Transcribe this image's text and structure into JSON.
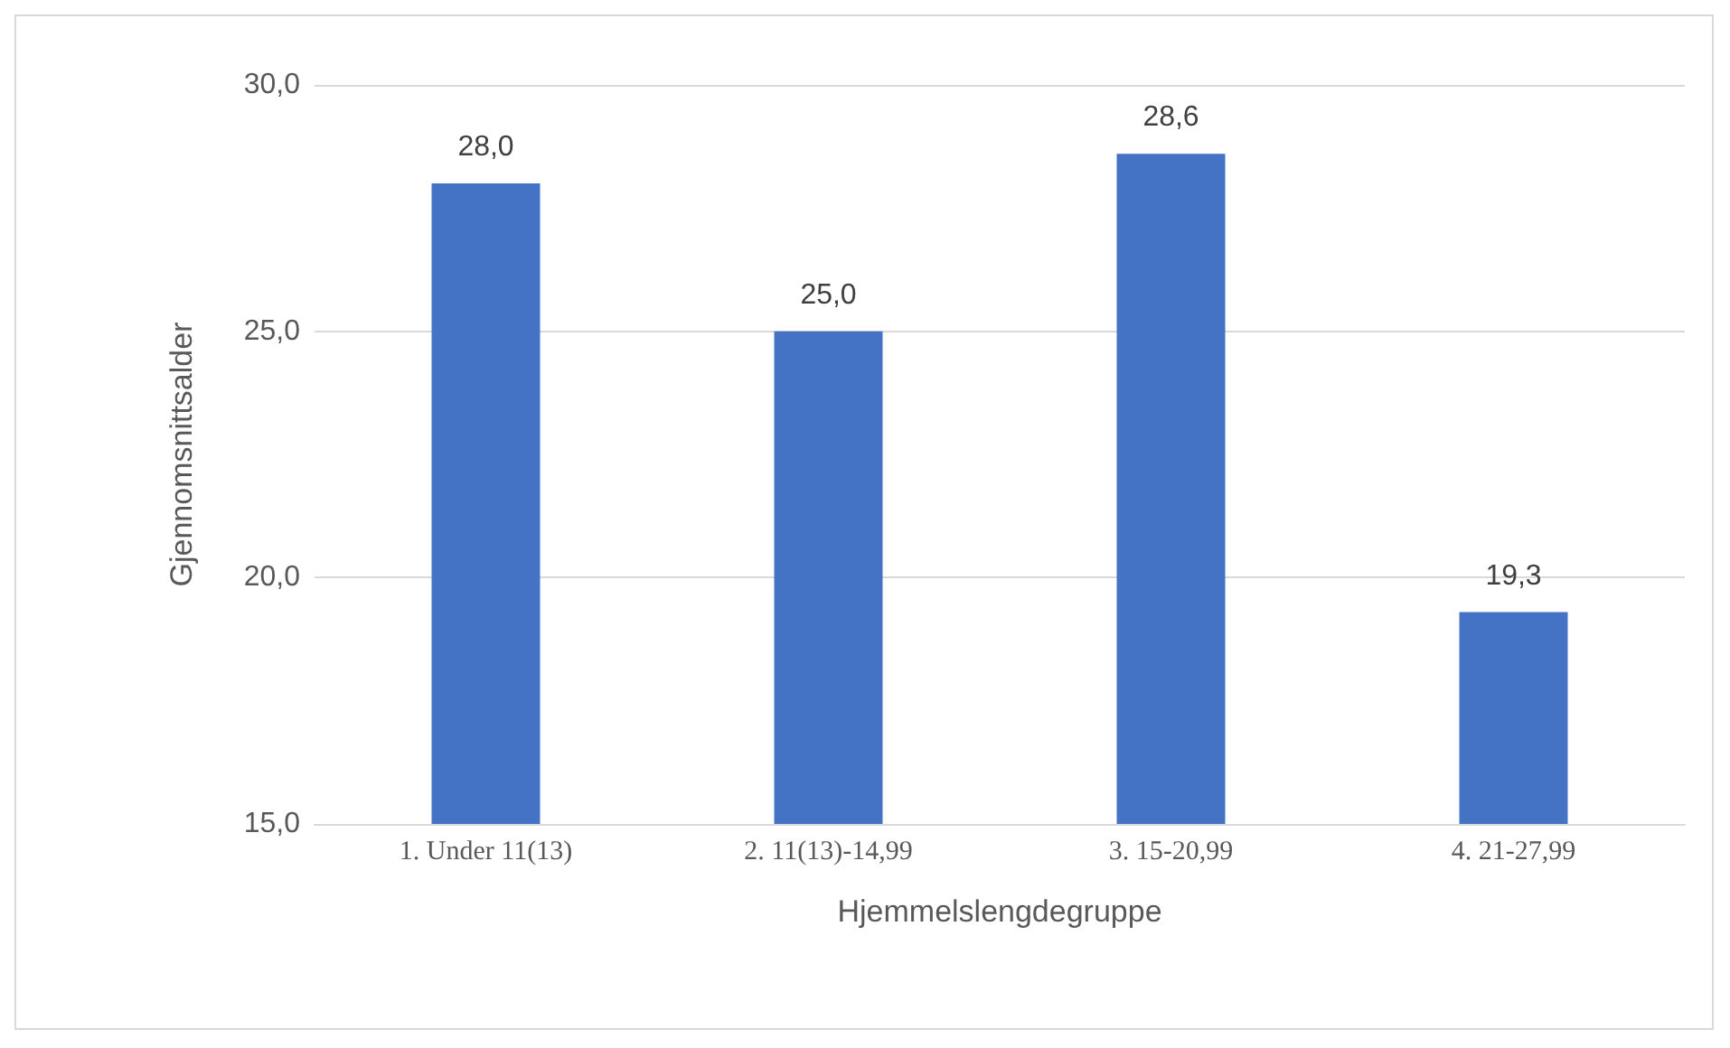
{
  "chart_data": {
    "type": "bar",
    "xlabel": "Hjemmelslengdegruppe",
    "ylabel": "Gjennomsnittsalder",
    "categories": [
      "1. Under 11(13)",
      "2. 11(13)-14,99",
      "3. 15-20,99",
      "4. 21-27,99"
    ],
    "values": [
      28.0,
      25.0,
      28.6,
      19.3
    ],
    "color": "#4472c4",
    "value_labels": [
      "28,0",
      "25,0",
      "28,6",
      "19,3"
    ],
    "ylim": [
      15,
      30
    ],
    "yticks": [
      {
        "value": 15,
        "label": "15,0"
      },
      {
        "value": 20,
        "label": "20,0"
      },
      {
        "value": 25,
        "label": "25,0"
      },
      {
        "value": 30,
        "label": "30,0"
      }
    ],
    "grid": "y"
  }
}
